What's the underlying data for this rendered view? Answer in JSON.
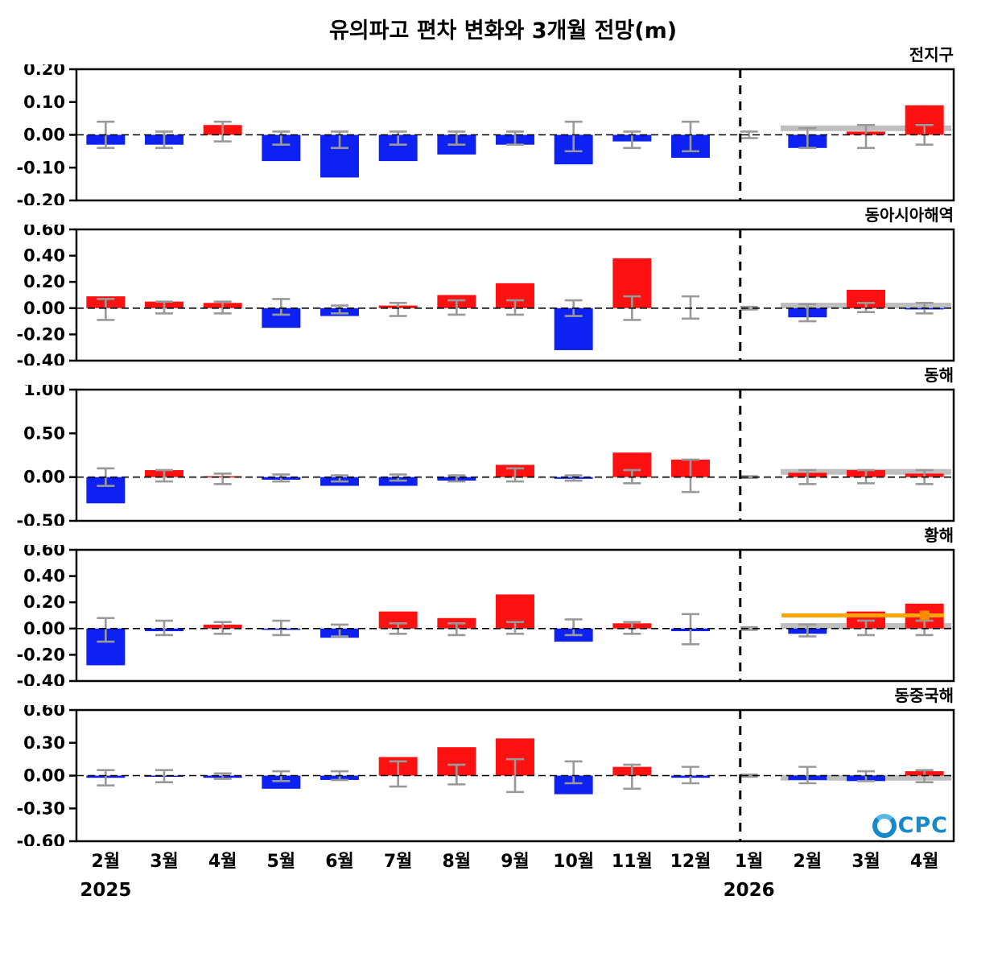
{
  "title": "유의파고 편차 변화와 3개월 전망(m)",
  "logo_text": "CPC",
  "colors": {
    "positive": "#ff1111",
    "negative": "#0d22f2",
    "errorbar": "#999999",
    "band": "#bfbfbf",
    "overlay": "#ffa500",
    "overlay_marker": "#ff8c00",
    "axis": "#000000"
  },
  "x_axis": {
    "months": [
      "2월",
      "3월",
      "4월",
      "5월",
      "6월",
      "7월",
      "8월",
      "9월",
      "10월",
      "11월",
      "12월",
      "1월",
      "2월",
      "3월",
      "4월"
    ],
    "year_labels": [
      {
        "text": "2025",
        "month_index": 0
      },
      {
        "text": "2026",
        "month_index": 11
      }
    ],
    "divider_index": 11.35,
    "forecast_months": [
      "2월",
      "3월",
      "4월"
    ]
  },
  "chart_data": [
    {
      "type": "bar",
      "title": "전지구",
      "ylim": [
        -0.2,
        0.2
      ],
      "yticks": [
        0.2,
        0.1,
        0.0,
        -0.1,
        -0.2
      ],
      "values": [
        -0.03,
        -0.03,
        0.03,
        -0.08,
        -0.13,
        -0.08,
        -0.06,
        -0.03,
        -0.09,
        -0.02,
        -0.07,
        0.0,
        -0.04,
        0.01,
        0.09
      ],
      "err_lo": [
        -0.04,
        -0.04,
        -0.02,
        -0.03,
        -0.04,
        -0.03,
        -0.03,
        -0.03,
        -0.05,
        -0.04,
        -0.05,
        -0.01,
        -0.04,
        -0.04,
        -0.03
      ],
      "err_hi": [
        0.04,
        0.01,
        0.04,
        0.01,
        0.01,
        0.01,
        0.01,
        0.01,
        0.04,
        0.01,
        0.04,
        0.01,
        0.02,
        0.03,
        0.03
      ],
      "band": {
        "from": 12,
        "to": 14,
        "value": 0.02
      }
    },
    {
      "type": "bar",
      "title": "동아시아해역",
      "ylim": [
        -0.4,
        0.6
      ],
      "yticks": [
        0.6,
        0.4,
        0.2,
        0.0,
        -0.2,
        -0.4
      ],
      "values": [
        0.09,
        0.05,
        0.04,
        -0.15,
        -0.06,
        0.02,
        0.1,
        0.19,
        -0.32,
        0.38,
        0.0,
        0.0,
        -0.07,
        0.14,
        -0.01
      ],
      "err_lo": [
        -0.09,
        -0.04,
        -0.04,
        -0.05,
        -0.04,
        -0.06,
        -0.05,
        -0.05,
        -0.06,
        -0.09,
        -0.08,
        -0.01,
        -0.1,
        -0.03,
        -0.04
      ],
      "err_hi": [
        0.07,
        0.05,
        0.05,
        0.07,
        0.02,
        0.04,
        0.06,
        0.06,
        0.06,
        0.09,
        0.09,
        0.01,
        0.03,
        0.04,
        0.04
      ],
      "band": {
        "from": 12,
        "to": 14,
        "value": 0.02
      }
    },
    {
      "type": "bar",
      "title": "동해",
      "ylim": [
        -0.5,
        1.0
      ],
      "yticks": [
        1.0,
        0.5,
        0.0,
        -0.5
      ],
      "values": [
        -0.3,
        0.08,
        0.01,
        -0.03,
        -0.1,
        -0.1,
        -0.04,
        0.14,
        -0.02,
        0.28,
        0.2,
        0.0,
        0.05,
        0.08,
        0.04
      ],
      "err_lo": [
        -0.1,
        -0.05,
        -0.08,
        -0.05,
        -0.05,
        -0.04,
        -0.05,
        -0.05,
        -0.04,
        -0.07,
        -0.17,
        -0.01,
        -0.08,
        -0.07,
        -0.08
      ],
      "err_hi": [
        0.1,
        0.08,
        0.04,
        0.03,
        0.02,
        0.03,
        0.02,
        0.1,
        0.02,
        0.08,
        0.2,
        0.01,
        0.08,
        0.08,
        0.08
      ],
      "band": {
        "from": 12,
        "to": 14,
        "value": 0.06
      }
    },
    {
      "type": "bar",
      "title": "황해",
      "ylim": [
        -0.4,
        0.6
      ],
      "yticks": [
        0.6,
        0.4,
        0.2,
        0.0,
        -0.2,
        -0.4
      ],
      "values": [
        -0.28,
        -0.02,
        0.03,
        -0.01,
        -0.07,
        0.13,
        0.08,
        0.26,
        -0.1,
        0.04,
        -0.02,
        0.0,
        -0.04,
        0.13,
        0.19
      ],
      "err_lo": [
        -0.1,
        -0.05,
        -0.04,
        -0.05,
        -0.06,
        -0.04,
        -0.05,
        -0.04,
        -0.05,
        -0.04,
        -0.12,
        -0.01,
        -0.06,
        -0.05,
        -0.05
      ],
      "err_hi": [
        0.08,
        0.06,
        0.05,
        0.06,
        0.03,
        0.04,
        0.04,
        0.05,
        0.07,
        0.05,
        0.11,
        0.01,
        0.03,
        0.06,
        0.06
      ],
      "band": {
        "from": 12,
        "to": 14,
        "value": 0.02
      },
      "overlay": {
        "from": 12,
        "to": 14,
        "value": 0.1
      }
    },
    {
      "type": "bar",
      "title": "동중국해",
      "ylim": [
        -0.6,
        0.6
      ],
      "yticks": [
        0.6,
        0.3,
        0.0,
        -0.3,
        -0.6
      ],
      "values": [
        -0.02,
        -0.01,
        -0.02,
        -0.12,
        -0.04,
        0.17,
        0.26,
        0.34,
        -0.17,
        0.08,
        -0.02,
        0.0,
        -0.04,
        -0.05,
        0.04
      ],
      "err_lo": [
        -0.09,
        -0.06,
        -0.03,
        -0.05,
        -0.04,
        -0.1,
        -0.08,
        -0.15,
        -0.07,
        -0.12,
        -0.07,
        -0.01,
        -0.07,
        -0.05,
        -0.06
      ],
      "err_hi": [
        0.05,
        0.05,
        0.02,
        0.04,
        0.04,
        0.13,
        0.1,
        0.15,
        0.13,
        0.1,
        0.08,
        0.01,
        0.08,
        0.04,
        0.05
      ],
      "band": {
        "from": 12,
        "to": 14,
        "value": -0.02
      }
    }
  ]
}
